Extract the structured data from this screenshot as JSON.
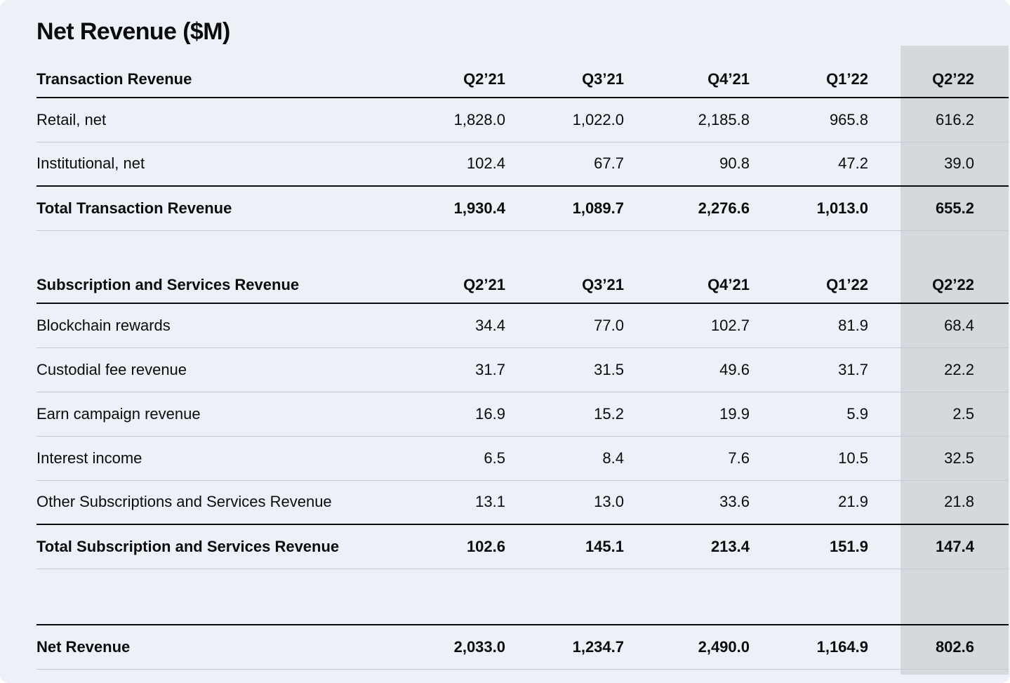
{
  "page": {
    "title": "Net Revenue ($M)",
    "colors": {
      "background": "#eef0f7",
      "highlight_band": "#d5d8dd",
      "text": "#0a0b0d",
      "thin_rule": "#c6c9d2",
      "thick_rule": "#0a0b0d"
    }
  },
  "table": {
    "columns": [
      "Q2’21",
      "Q3’21",
      "Q4’21",
      "Q1’22",
      "Q2’22"
    ],
    "highlighted_column": "Q2’22",
    "sections": [
      {
        "header": "Transaction Revenue",
        "rows": [
          {
            "label": "Retail, net",
            "values": [
              "1,828.0",
              "1,022.0",
              "2,185.8",
              "965.8",
              "616.2"
            ]
          },
          {
            "label": "Institutional, net",
            "values": [
              "102.4",
              "67.7",
              "90.8",
              "47.2",
              "39.0"
            ]
          }
        ],
        "total": {
          "label": "Total Transaction Revenue",
          "values": [
            "1,930.4",
            "1,089.7",
            "2,276.6",
            "1,013.0",
            "655.2"
          ]
        }
      },
      {
        "header": "Subscription and Services Revenue",
        "rows": [
          {
            "label": "Blockchain rewards",
            "values": [
              "34.4",
              "77.0",
              "102.7",
              "81.9",
              "68.4"
            ]
          },
          {
            "label": "Custodial fee revenue",
            "values": [
              "31.7",
              "31.5",
              "49.6",
              "31.7",
              "22.2"
            ]
          },
          {
            "label": "Earn campaign revenue",
            "values": [
              "16.9",
              "15.2",
              "19.9",
              "5.9",
              "2.5"
            ]
          },
          {
            "label": "Interest income",
            "values": [
              "6.5",
              "8.4",
              "7.6",
              "10.5",
              "32.5"
            ]
          },
          {
            "label": "Other Subscriptions and Services Revenue",
            "values": [
              "13.1",
              "13.0",
              "33.6",
              "21.9",
              "21.8"
            ]
          }
        ],
        "total": {
          "label": "Total Subscription and Services Revenue",
          "values": [
            "102.6",
            "145.1",
            "213.4",
            "151.9",
            "147.4"
          ]
        }
      }
    ],
    "grand_total": {
      "label": "Net Revenue",
      "values": [
        "2,033.0",
        "1,234.7",
        "2,490.0",
        "1,164.9",
        "802.6"
      ]
    }
  },
  "chart_data": {
    "type": "table",
    "title": "Net Revenue ($M)",
    "columns": [
      "Q2'21",
      "Q3'21",
      "Q4'21",
      "Q1'22",
      "Q2'22"
    ],
    "highlighted_column": "Q2'22",
    "sections": [
      {
        "name": "Transaction Revenue",
        "rows": [
          {
            "label": "Retail, net",
            "values": [
              1828.0,
              1022.0,
              2185.8,
              965.8,
              616.2
            ]
          },
          {
            "label": "Institutional, net",
            "values": [
              102.4,
              67.7,
              90.8,
              47.2,
              39.0
            ]
          },
          {
            "label": "Total Transaction Revenue",
            "values": [
              1930.4,
              1089.7,
              2276.6,
              1013.0,
              655.2
            ],
            "is_total": true
          }
        ]
      },
      {
        "name": "Subscription and Services Revenue",
        "rows": [
          {
            "label": "Blockchain rewards",
            "values": [
              34.4,
              77.0,
              102.7,
              81.9,
              68.4
            ]
          },
          {
            "label": "Custodial fee revenue",
            "values": [
              31.7,
              31.5,
              49.6,
              31.7,
              22.2
            ]
          },
          {
            "label": "Earn campaign revenue",
            "values": [
              16.9,
              15.2,
              19.9,
              5.9,
              2.5
            ]
          },
          {
            "label": "Interest income",
            "values": [
              6.5,
              8.4,
              7.6,
              10.5,
              32.5
            ]
          },
          {
            "label": "Other Subscriptions and Services Revenue",
            "values": [
              13.1,
              13.0,
              33.6,
              21.9,
              21.8
            ]
          },
          {
            "label": "Total Subscription and Services Revenue",
            "values": [
              102.6,
              145.1,
              213.4,
              151.9,
              147.4
            ],
            "is_total": true
          }
        ]
      }
    ],
    "grand_total": {
      "label": "Net Revenue",
      "values": [
        2033.0,
        1234.7,
        2490.0,
        1164.9,
        802.6
      ]
    }
  }
}
